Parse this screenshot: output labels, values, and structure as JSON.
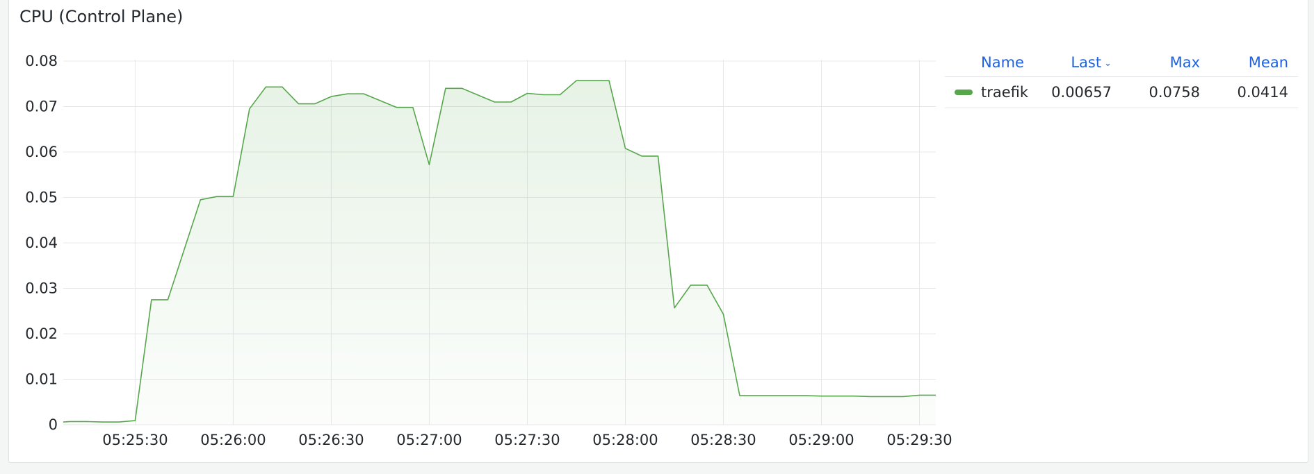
{
  "panel": {
    "title": "CPU (Control Plane)"
  },
  "legend": {
    "headers": {
      "name": "Name",
      "last": "Last",
      "max": "Max",
      "mean": "Mean"
    },
    "sort_icon": "chevron-down-icon",
    "rows": [
      {
        "name": "traefik",
        "last": "0.00657",
        "max": "0.0758",
        "mean": "0.0414",
        "color": "#56a64b"
      }
    ]
  },
  "chart_data": {
    "type": "area",
    "title": "CPU (Control Plane)",
    "xlabel": "",
    "ylabel": "",
    "x_ticks": [
      "05:25:30",
      "05:26:00",
      "05:26:30",
      "05:27:00",
      "05:27:30",
      "05:28:00",
      "05:28:30",
      "05:29:00",
      "05:29:30"
    ],
    "y_ticks": [
      "0",
      "0.01",
      "0.02",
      "0.03",
      "0.04",
      "0.05",
      "0.06",
      "0.07",
      "0.08"
    ],
    "ylim": [
      0,
      0.08
    ],
    "xlim": [
      "05:25:08",
      "05:29:35"
    ],
    "grid": true,
    "legend_position": "right",
    "series": [
      {
        "name": "traefik",
        "color": "#56a64b",
        "x": [
          "05:25:08",
          "05:25:10",
          "05:25:15",
          "05:25:20",
          "05:25:25",
          "05:25:30",
          "05:25:35",
          "05:25:40",
          "05:25:45",
          "05:25:50",
          "05:25:55",
          "05:26:00",
          "05:26:05",
          "05:26:10",
          "05:26:15",
          "05:26:20",
          "05:26:25",
          "05:26:30",
          "05:26:35",
          "05:26:40",
          "05:26:45",
          "05:26:50",
          "05:26:55",
          "05:27:00",
          "05:27:05",
          "05:27:10",
          "05:27:15",
          "05:27:20",
          "05:27:25",
          "05:27:30",
          "05:27:35",
          "05:27:40",
          "05:27:45",
          "05:27:50",
          "05:27:55",
          "05:28:00",
          "05:28:05",
          "05:28:10",
          "05:28:15",
          "05:28:20",
          "05:28:25",
          "05:28:30",
          "05:28:35",
          "05:28:40",
          "05:28:45",
          "05:28:50",
          "05:28:55",
          "05:29:00",
          "05:29:05",
          "05:29:10",
          "05:29:15",
          "05:29:20",
          "05:29:25",
          "05:29:30",
          "05:29:35"
        ],
        "y": [
          0.0006,
          0.0007,
          0.0007,
          0.0006,
          0.0006,
          0.0009,
          0.0275,
          0.0275,
          0.0385,
          0.0495,
          0.0502,
          0.0502,
          0.0695,
          0.0743,
          0.0743,
          0.0706,
          0.0706,
          0.0722,
          0.0728,
          0.0728,
          0.0713,
          0.0698,
          0.0698,
          0.0572,
          0.074,
          0.074,
          0.0725,
          0.071,
          0.071,
          0.0729,
          0.0726,
          0.0726,
          0.0757,
          0.0757,
          0.0757,
          0.0608,
          0.0591,
          0.0591,
          0.0257,
          0.0307,
          0.0307,
          0.0243,
          0.0064,
          0.0064,
          0.0064,
          0.0064,
          0.0064,
          0.0063,
          0.0063,
          0.0063,
          0.0062,
          0.0062,
          0.0062,
          0.0065,
          0.0065
        ]
      }
    ]
  }
}
